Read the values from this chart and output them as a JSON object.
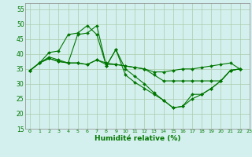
{
  "title": "",
  "xlabel": "Humidité relative (%)",
  "ylabel": "",
  "background_color": "#d4f0ee",
  "grid_color": "#aaccaa",
  "line_color": "#007700",
  "xlim": [
    -0.5,
    23
  ],
  "ylim": [
    15,
    57
  ],
  "xticks": [
    0,
    1,
    2,
    3,
    4,
    5,
    6,
    7,
    8,
    9,
    10,
    11,
    12,
    13,
    14,
    15,
    16,
    17,
    18,
    19,
    20,
    21,
    22,
    23
  ],
  "yticks": [
    15,
    20,
    25,
    30,
    35,
    40,
    45,
    50,
    55
  ],
  "series": [
    [
      34.5,
      37,
      39,
      38,
      37,
      46.5,
      47,
      49.5,
      36,
      41.5,
      33,
      30.5,
      28.5,
      26.5,
      24.5,
      22,
      22.5,
      26.5,
      26.5,
      28.5,
      31,
      34.5,
      35
    ],
    [
      34.5,
      37,
      38.5,
      37.5,
      37,
      37,
      36.5,
      38,
      36.5,
      36.5,
      36,
      35.5,
      35,
      34,
      34,
      34.5,
      35,
      35,
      35.5,
      36,
      36.5,
      37,
      35
    ],
    [
      34.5,
      37,
      38.5,
      37.5,
      37,
      37,
      36.5,
      38,
      37,
      36.5,
      36,
      35.5,
      35,
      33,
      31,
      31,
      31,
      31,
      31,
      31,
      31,
      34.5,
      35
    ],
    [
      34.5,
      37,
      40.5,
      41,
      46.5,
      47,
      49.5,
      46.5,
      36,
      41.5,
      35,
      32.5,
      30,
      27,
      24.5,
      22,
      22.5,
      25,
      26.5,
      28.5,
      31,
      34.5,
      35
    ]
  ]
}
